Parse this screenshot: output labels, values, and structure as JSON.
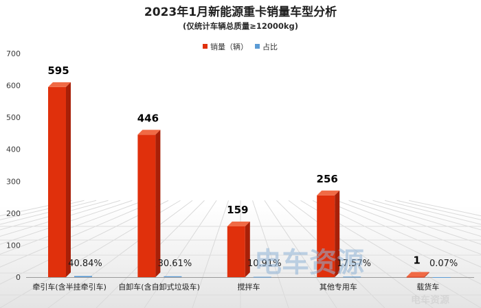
{
  "chart_data": {
    "type": "bar",
    "title": "2023年1月新能源重卡销量车型分析",
    "subtitle": "(仅统计车辆总质量≥12000kg)",
    "categories": [
      "牵引车(含半挂牵引车)",
      "自卸车(含自卸式垃圾车)",
      "搅拌车",
      "其他专用车",
      "载货车"
    ],
    "series": [
      {
        "name": "销量（辆）",
        "values": [
          595,
          446,
          159,
          256,
          1
        ],
        "labels": [
          "595",
          "446",
          "159",
          "256",
          "1"
        ],
        "color": "#e0300c"
      },
      {
        "name": "占比",
        "values": [
          40.84,
          30.61,
          10.91,
          17.57,
          0.07
        ],
        "labels": [
          "40.84%",
          "30.61%",
          "10.91%",
          "17.57%",
          "0.07%"
        ],
        "color": "#5b9bd5"
      }
    ],
    "yticks": [
      "0",
      "100",
      "200",
      "300",
      "400",
      "500",
      "600",
      "700"
    ],
    "ylim": [
      0,
      700
    ],
    "grid": false,
    "legend": "top-center"
  },
  "watermark": {
    "text": "电车资源",
    "sub_text": "电车资源"
  }
}
